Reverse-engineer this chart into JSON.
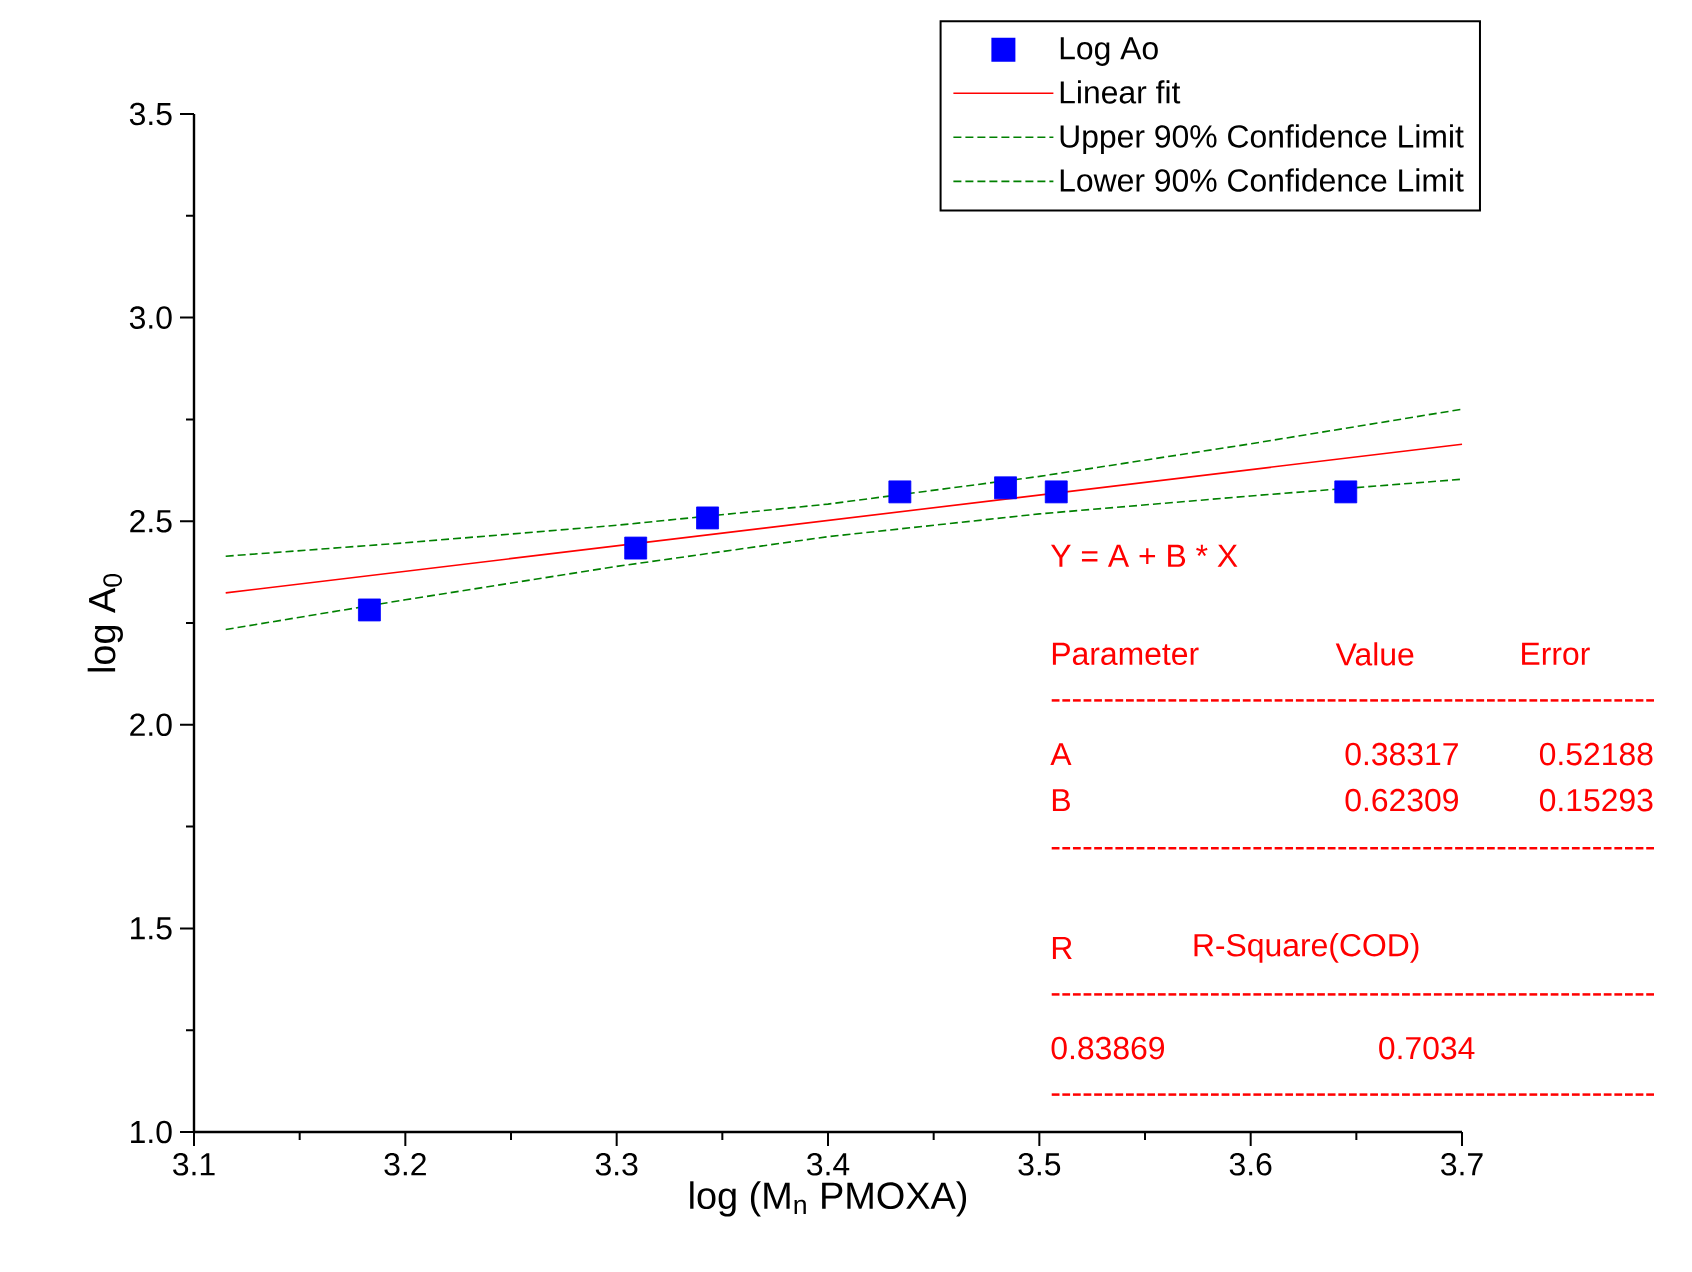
{
  "chart_data": {
    "type": "scatter",
    "xlabel": "log (M$_{n}$ PMOXA)",
    "ylabel": "log A$_{0}$",
    "xlim": [
      3.1,
      3.7
    ],
    "ylim": [
      1.0,
      3.5
    ],
    "xticks": [
      3.1,
      {
        "value": 3.15,
        "label": null
      },
      3.2,
      {
        "value": 3.25,
        "label": null
      },
      3.3,
      {
        "value": 3.35,
        "label": null
      },
      3.4,
      {
        "value": 3.45,
        "label": null
      },
      3.5,
      {
        "value": 3.55,
        "label": null
      },
      3.6,
      {
        "value": 3.65,
        "label": null
      },
      3.7
    ],
    "yticks": [
      {
        "value": 1.0,
        "label": "1.0"
      },
      {
        "value": 1.25,
        "label": null
      },
      {
        "value": 1.5,
        "label": "1.5"
      },
      {
        "value": 1.75,
        "label": null
      },
      {
        "value": 2.0,
        "label": "2.0"
      },
      {
        "value": 2.25,
        "label": null
      },
      {
        "value": 2.5,
        "label": "2.5"
      },
      {
        "value": 2.75,
        "label": null
      },
      {
        "value": 3.0,
        "label": "3.0"
      },
      {
        "value": 3.25,
        "label": null
      },
      {
        "value": 3.5,
        "label": "3.5"
      }
    ],
    "grid": false,
    "legend": "top right",
    "series": [
      {
        "name": "Log Ao",
        "marker": "square",
        "color": "#0000ff",
        "x": [
          3.183,
          3.309,
          3.343,
          3.434,
          3.484,
          3.508,
          3.645
        ],
        "values": [
          2.282,
          2.434,
          2.508,
          2.572,
          2.582,
          2.572,
          2.572
        ]
      },
      {
        "name": "Linear fit",
        "type": "line",
        "marker": "none",
        "line_style": "solid",
        "color": "#ff0000",
        "x": [
          3.115,
          3.7
        ],
        "values": [
          2.324,
          2.689
        ]
      },
      {
        "name": "Upper 90% Confidence Limit",
        "type": "line",
        "marker": "none",
        "line_style": "dashed",
        "color": "#008000",
        "x": [
          3.115,
          3.2,
          3.3,
          3.4,
          3.5,
          3.6,
          3.7
        ],
        "values": [
          2.414,
          2.447,
          2.49,
          2.542,
          2.61,
          2.69,
          2.775
        ]
      },
      {
        "name": "Lower 90% Confidence Limit",
        "type": "line",
        "marker": "none",
        "line_style": "dashed",
        "color": "#008000",
        "x": [
          3.115,
          3.2,
          3.3,
          3.4,
          3.5,
          3.6,
          3.7
        ],
        "values": [
          2.234,
          2.307,
          2.389,
          2.462,
          2.518,
          2.562,
          2.603
        ]
      }
    ],
    "annotations": [
      "Y = A + B * X",
      "Parameter",
      "Value",
      "Error",
      "---------------------------------------------------------",
      "A",
      "0.38317",
      "0.52188",
      "B",
      "0.62309",
      "0.15293",
      "---------------------------------------------------------",
      "R",
      "R-Square(COD)",
      "---------------------------------------------------------",
      "0.83869",
      "0.7034",
      "---------------------------------------------------------"
    ]
  }
}
